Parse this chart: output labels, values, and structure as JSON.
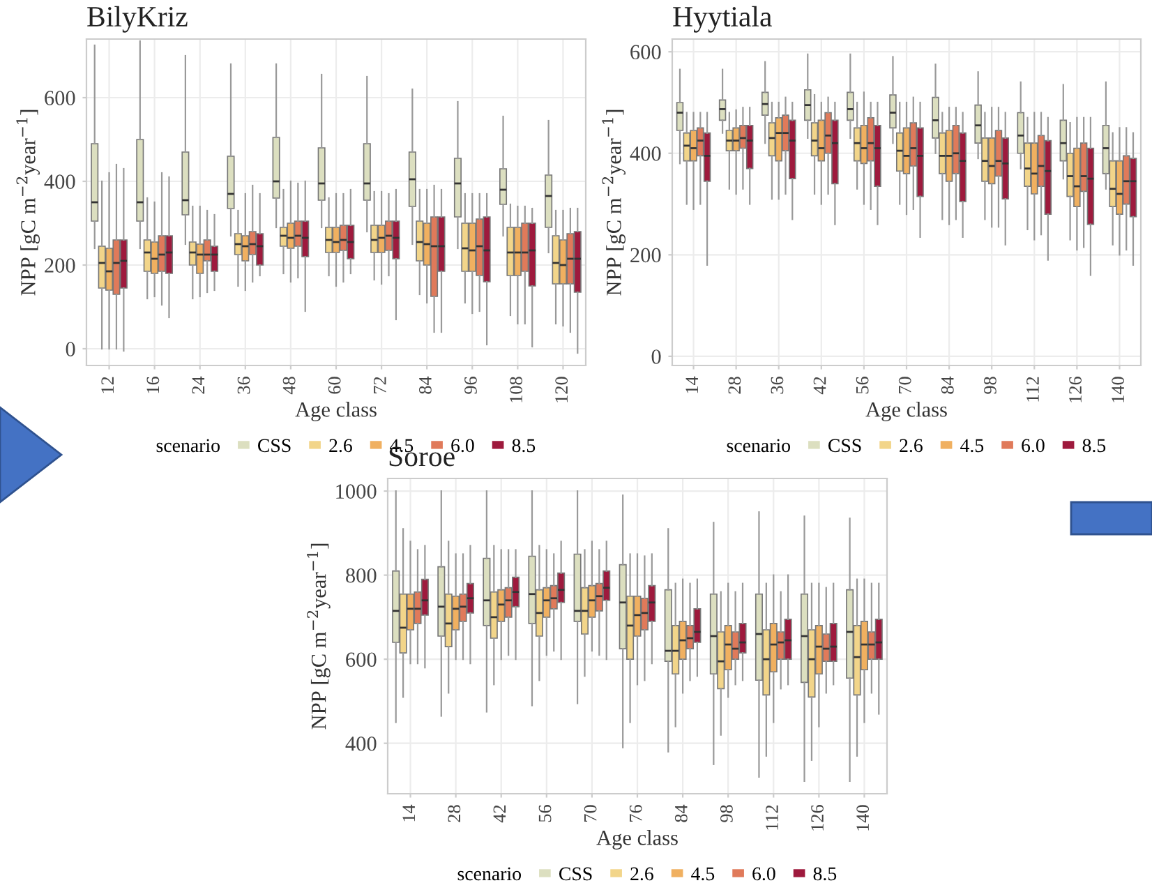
{
  "chart_data": [
    {
      "type": "box",
      "title": "BilyKriz",
      "xlabel": "Age class",
      "ylabel": "NPP [gC m$^{−2}$year$^{−1}$]",
      "legend_title": "scenario",
      "legend": "bottom",
      "grid": true,
      "ylim": [
        -40,
        740
      ],
      "yticks": [
        0,
        200,
        400,
        600
      ],
      "categories": [
        "12",
        "16",
        "24",
        "36",
        "48",
        "60",
        "72",
        "84",
        "96",
        "108",
        "120"
      ],
      "series": [
        {
          "name": "CSS",
          "color": "#dcdfc0",
          "boxes": [
            {
              "low": 240,
              "q1": 305,
              "median": 350,
              "q3": 490,
              "high": 725
            },
            {
              "low": 240,
              "q1": 305,
              "median": 350,
              "q3": 500,
              "high": 735
            },
            {
              "low": 250,
              "q1": 320,
              "median": 355,
              "q3": 470,
              "high": 700
            },
            {
              "low": 270,
              "q1": 335,
              "median": 370,
              "q3": 460,
              "high": 680
            },
            {
              "low": 290,
              "q1": 360,
              "median": 400,
              "q3": 505,
              "high": 680
            },
            {
              "low": 290,
              "q1": 355,
              "median": 395,
              "q3": 480,
              "high": 655
            },
            {
              "low": 280,
              "q1": 355,
              "median": 395,
              "q3": 490,
              "high": 650
            },
            {
              "low": 250,
              "q1": 340,
              "median": 405,
              "q3": 470,
              "high": 620
            },
            {
              "low": 240,
              "q1": 315,
              "median": 395,
              "q3": 455,
              "high": 590
            },
            {
              "low": 270,
              "q1": 345,
              "median": 380,
              "q3": 430,
              "high": 555
            },
            {
              "low": 230,
              "q1": 290,
              "median": 365,
              "q3": 415,
              "high": 545
            }
          ]
        },
        {
          "name": "2.6",
          "color": "#f2d58a",
          "boxes": [
            {
              "low": 0,
              "q1": 145,
              "median": 205,
              "q3": 245,
              "high": 400
            },
            {
              "low": 120,
              "q1": 185,
              "median": 230,
              "q3": 260,
              "high": 360
            },
            {
              "low": 120,
              "q1": 200,
              "median": 230,
              "q3": 255,
              "high": 340
            },
            {
              "low": 150,
              "q1": 225,
              "median": 250,
              "q3": 275,
              "high": 330
            },
            {
              "low": 180,
              "q1": 245,
              "median": 270,
              "q3": 290,
              "high": 380
            },
            {
              "low": 175,
              "q1": 230,
              "median": 260,
              "q3": 290,
              "high": 360
            },
            {
              "low": 165,
              "q1": 230,
              "median": 260,
              "q3": 295,
              "high": 375
            },
            {
              "low": 130,
              "q1": 210,
              "median": 255,
              "q3": 305,
              "high": 380
            },
            {
              "low": 110,
              "q1": 185,
              "median": 240,
              "q3": 300,
              "high": 370
            },
            {
              "low": 80,
              "q1": 175,
              "median": 230,
              "q3": 290,
              "high": 345
            },
            {
              "low": 60,
              "q1": 155,
              "median": 205,
              "q3": 270,
              "high": 330
            }
          ]
        },
        {
          "name": "4.5",
          "color": "#f0b060",
          "boxes": [
            {
              "low": 0,
              "q1": 140,
              "median": 185,
              "q3": 240,
              "high": 420
            },
            {
              "low": 125,
              "q1": 180,
              "median": 215,
              "q3": 255,
              "high": 350
            },
            {
              "low": 125,
              "q1": 180,
              "median": 225,
              "q3": 250,
              "high": 340
            },
            {
              "low": 140,
              "q1": 210,
              "median": 245,
              "q3": 270,
              "high": 370
            },
            {
              "low": 160,
              "q1": 240,
              "median": 265,
              "q3": 300,
              "high": 400
            },
            {
              "low": 150,
              "q1": 230,
              "median": 255,
              "q3": 290,
              "high": 370
            },
            {
              "low": 155,
              "q1": 230,
              "median": 265,
              "q3": 295,
              "high": 375
            },
            {
              "low": 110,
              "q1": 200,
              "median": 250,
              "q3": 300,
              "high": 380
            },
            {
              "low": 85,
              "q1": 185,
              "median": 235,
              "q3": 300,
              "high": 370
            },
            {
              "low": 60,
              "q1": 175,
              "median": 230,
              "q3": 290,
              "high": 340
            },
            {
              "low": 55,
              "q1": 155,
              "median": 200,
              "q3": 260,
              "high": 330
            }
          ]
        },
        {
          "name": "6.0",
          "color": "#e07a5a",
          "boxes": [
            {
              "low": 0,
              "q1": 130,
              "median": 205,
              "q3": 260,
              "high": 440
            },
            {
              "low": 105,
              "q1": 185,
              "median": 225,
              "q3": 270,
              "high": 420
            },
            {
              "low": 135,
              "q1": 210,
              "median": 225,
              "q3": 260,
              "high": 330
            },
            {
              "low": 160,
              "q1": 225,
              "median": 250,
              "q3": 280,
              "high": 390
            },
            {
              "low": 170,
              "q1": 245,
              "median": 270,
              "q3": 305,
              "high": 395
            },
            {
              "low": 160,
              "q1": 235,
              "median": 260,
              "q3": 295,
              "high": 370
            },
            {
              "low": 175,
              "q1": 235,
              "median": 270,
              "q3": 305,
              "high": 370
            },
            {
              "low": 40,
              "q1": 125,
              "median": 245,
              "q3": 315,
              "high": 390
            },
            {
              "low": 90,
              "q1": 175,
              "median": 245,
              "q3": 310,
              "high": 370
            },
            {
              "low": 60,
              "q1": 185,
              "median": 230,
              "q3": 300,
              "high": 340
            },
            {
              "low": 40,
              "q1": 155,
              "median": 215,
              "q3": 275,
              "high": 335
            }
          ]
        },
        {
          "name": "8.5",
          "color": "#9e1a3d",
          "boxes": [
            {
              "low": -5,
              "q1": 145,
              "median": 210,
              "q3": 260,
              "high": 430
            },
            {
              "low": 75,
              "q1": 180,
              "median": 230,
              "q3": 270,
              "high": 410
            },
            {
              "low": 140,
              "q1": 185,
              "median": 225,
              "q3": 245,
              "high": 320
            },
            {
              "low": 175,
              "q1": 200,
              "median": 245,
              "q3": 275,
              "high": 370
            },
            {
              "low": 90,
              "q1": 220,
              "median": 265,
              "q3": 305,
              "high": 400
            },
            {
              "low": 180,
              "q1": 215,
              "median": 255,
              "q3": 295,
              "high": 380
            },
            {
              "low": 70,
              "q1": 215,
              "median": 265,
              "q3": 305,
              "high": 380
            },
            {
              "low": 40,
              "q1": 185,
              "median": 245,
              "q3": 315,
              "high": 380
            },
            {
              "low": 10,
              "q1": 160,
              "median": 235,
              "q3": 315,
              "high": 370
            },
            {
              "low": 5,
              "q1": 150,
              "median": 235,
              "q3": 300,
              "high": 335
            },
            {
              "low": -10,
              "q1": 135,
              "median": 215,
              "q3": 280,
              "high": 335
            }
          ]
        }
      ]
    },
    {
      "type": "box",
      "title": "Hyytiala",
      "xlabel": "Age class",
      "ylabel": "NPP [gC m$^{−2}$year$^{−1}$]",
      "legend_title": "scenario",
      "legend": "bottom",
      "grid": true,
      "ylim": [
        -18,
        625
      ],
      "yticks": [
        0,
        200,
        400,
        600
      ],
      "categories": [
        "14",
        "28",
        "36",
        "42",
        "56",
        "70",
        "84",
        "98",
        "112",
        "126",
        "140"
      ],
      "series": [
        {
          "name": "CSS",
          "color": "#dcdfc0",
          "boxes": [
            {
              "low": 380,
              "q1": 445,
              "median": 480,
              "q3": 500,
              "high": 565
            },
            {
              "low": 440,
              "q1": 465,
              "median": 487,
              "q3": 505,
              "high": 565
            },
            {
              "low": 420,
              "q1": 475,
              "median": 497,
              "q3": 520,
              "high": 580
            },
            {
              "low": 430,
              "q1": 465,
              "median": 495,
              "q3": 525,
              "high": 595
            },
            {
              "low": 430,
              "q1": 465,
              "median": 487,
              "q3": 520,
              "high": 595
            },
            {
              "low": 420,
              "q1": 450,
              "median": 480,
              "q3": 515,
              "high": 590
            },
            {
              "low": 400,
              "q1": 430,
              "median": 465,
              "q3": 510,
              "high": 575
            },
            {
              "low": 390,
              "q1": 420,
              "median": 455,
              "q3": 495,
              "high": 560
            },
            {
              "low": 370,
              "q1": 400,
              "median": 435,
              "q3": 480,
              "high": 540
            },
            {
              "low": 350,
              "q1": 385,
              "median": 420,
              "q3": 465,
              "high": 535
            },
            {
              "low": 330,
              "q1": 360,
              "median": 410,
              "q3": 455,
              "high": 540
            }
          ]
        },
        {
          "name": "2.6",
          "color": "#f2d58a",
          "boxes": [
            {
              "low": 300,
              "q1": 385,
              "median": 415,
              "q3": 440,
              "high": 480
            },
            {
              "low": 330,
              "q1": 405,
              "median": 425,
              "q3": 445,
              "high": 480
            },
            {
              "low": 310,
              "q1": 395,
              "median": 430,
              "q3": 460,
              "high": 500
            },
            {
              "low": 320,
              "q1": 395,
              "median": 425,
              "q3": 460,
              "high": 515
            },
            {
              "low": 330,
              "q1": 385,
              "median": 420,
              "q3": 450,
              "high": 500
            },
            {
              "low": 300,
              "q1": 365,
              "median": 405,
              "q3": 440,
              "high": 500
            },
            {
              "low": 270,
              "q1": 360,
              "median": 395,
              "q3": 440,
              "high": 480
            },
            {
              "low": 270,
              "q1": 345,
              "median": 385,
              "q3": 430,
              "high": 480
            },
            {
              "low": 250,
              "q1": 335,
              "median": 370,
              "q3": 420,
              "high": 470
            },
            {
              "low": 230,
              "q1": 315,
              "median": 355,
              "q3": 400,
              "high": 460
            },
            {
              "low": 220,
              "q1": 295,
              "median": 330,
              "q3": 385,
              "high": 440
            }
          ]
        },
        {
          "name": "4.5",
          "color": "#f0b060",
          "boxes": [
            {
              "low": 290,
              "q1": 385,
              "median": 410,
              "q3": 445,
              "high": 480
            },
            {
              "low": 320,
              "q1": 405,
              "median": 425,
              "q3": 450,
              "high": 485
            },
            {
              "low": 310,
              "q1": 385,
              "median": 440,
              "q3": 470,
              "high": 500
            },
            {
              "low": 300,
              "q1": 385,
              "median": 410,
              "q3": 465,
              "high": 500
            },
            {
              "low": 300,
              "q1": 380,
              "median": 410,
              "q3": 455,
              "high": 520
            },
            {
              "low": 280,
              "q1": 360,
              "median": 395,
              "q3": 450,
              "high": 500
            },
            {
              "low": 260,
              "q1": 345,
              "median": 395,
              "q3": 445,
              "high": 490
            },
            {
              "low": 255,
              "q1": 340,
              "median": 375,
              "q3": 430,
              "high": 490
            },
            {
              "low": 230,
              "q1": 320,
              "median": 360,
              "q3": 420,
              "high": 480
            },
            {
              "low": 210,
              "q1": 295,
              "median": 335,
              "q3": 410,
              "high": 470
            },
            {
              "low": 200,
              "q1": 280,
              "median": 320,
              "q3": 385,
              "high": 450
            }
          ]
        },
        {
          "name": "6.0",
          "color": "#e07a5a",
          "boxes": [
            {
              "low": 300,
              "q1": 395,
              "median": 425,
              "q3": 450,
              "high": 480
            },
            {
              "low": 330,
              "q1": 410,
              "median": 430,
              "q3": 455,
              "high": 490
            },
            {
              "low": 320,
              "q1": 405,
              "median": 440,
              "q3": 475,
              "high": 510
            },
            {
              "low": 320,
              "q1": 400,
              "median": 435,
              "q3": 480,
              "high": 510
            },
            {
              "low": 290,
              "q1": 385,
              "median": 420,
              "q3": 470,
              "high": 500
            },
            {
              "low": 290,
              "q1": 375,
              "median": 410,
              "q3": 460,
              "high": 510
            },
            {
              "low": 270,
              "q1": 360,
              "median": 400,
              "q3": 455,
              "high": 490
            },
            {
              "low": 255,
              "q1": 355,
              "median": 385,
              "q3": 445,
              "high": 490
            },
            {
              "low": 240,
              "q1": 335,
              "median": 375,
              "q3": 435,
              "high": 480
            },
            {
              "low": 215,
              "q1": 325,
              "median": 355,
              "q3": 420,
              "high": 470
            },
            {
              "low": 210,
              "q1": 300,
              "median": 345,
              "q3": 395,
              "high": 450
            }
          ]
        },
        {
          "name": "8.5",
          "color": "#9e1a3d",
          "boxes": [
            {
              "low": 180,
              "q1": 345,
              "median": 395,
              "q3": 440,
              "high": 480
            },
            {
              "low": 300,
              "q1": 370,
              "median": 425,
              "q3": 455,
              "high": 490
            },
            {
              "low": 270,
              "q1": 350,
              "median": 425,
              "q3": 465,
              "high": 500
            },
            {
              "low": 260,
              "q1": 340,
              "median": 420,
              "q3": 465,
              "high": 500
            },
            {
              "low": 260,
              "q1": 335,
              "median": 410,
              "q3": 455,
              "high": 500
            },
            {
              "low": 235,
              "q1": 315,
              "median": 395,
              "q3": 450,
              "high": 500
            },
            {
              "low": 235,
              "q1": 305,
              "median": 385,
              "q3": 440,
              "high": 480
            },
            {
              "low": 220,
              "q1": 310,
              "median": 380,
              "q3": 430,
              "high": 480
            },
            {
              "low": 190,
              "q1": 280,
              "median": 365,
              "q3": 425,
              "high": 470
            },
            {
              "low": 160,
              "q1": 260,
              "median": 350,
              "q3": 410,
              "high": 470
            },
            {
              "low": 180,
              "q1": 275,
              "median": 345,
              "q3": 390,
              "high": 440
            }
          ]
        }
      ]
    },
    {
      "type": "box",
      "title": "Soroe",
      "xlabel": "Age class",
      "ylabel": "NPP [gC m$^{−2}$year$^{−1}$]",
      "legend_title": "scenario",
      "legend": "bottom",
      "grid": true,
      "ylim": [
        280,
        1030
      ],
      "yticks": [
        400,
        600,
        800,
        1000
      ],
      "categories": [
        "14",
        "28",
        "42",
        "56",
        "70",
        "76",
        "84",
        "98",
        "112",
        "126",
        "140"
      ],
      "series": [
        {
          "name": "CSS",
          "color": "#dcdfc0",
          "boxes": [
            {
              "low": 450,
              "q1": 640,
              "median": 715,
              "q3": 810,
              "high": 1000
            },
            {
              "low": 465,
              "q1": 655,
              "median": 725,
              "q3": 820,
              "high": 1000
            },
            {
              "low": 475,
              "q1": 680,
              "median": 740,
              "q3": 840,
              "high": 1000
            },
            {
              "low": 490,
              "q1": 685,
              "median": 755,
              "q3": 845,
              "high": 1000
            },
            {
              "low": 495,
              "q1": 690,
              "median": 715,
              "q3": 850,
              "high": 1000
            },
            {
              "low": 390,
              "q1": 625,
              "median": 735,
              "q3": 825,
              "high": 990
            },
            {
              "low": 380,
              "q1": 595,
              "median": 620,
              "q3": 765,
              "high": 910
            },
            {
              "low": 350,
              "q1": 565,
              "median": 655,
              "q3": 755,
              "high": 925
            },
            {
              "low": 320,
              "q1": 550,
              "median": 660,
              "q3": 755,
              "high": 950
            },
            {
              "low": 310,
              "q1": 545,
              "median": 655,
              "q3": 755,
              "high": 940
            },
            {
              "low": 310,
              "q1": 555,
              "median": 665,
              "q3": 765,
              "high": 935
            }
          ]
        },
        {
          "name": "2.6",
          "color": "#f2d58a",
          "boxes": [
            {
              "low": 510,
              "q1": 615,
              "median": 675,
              "q3": 755,
              "high": 910
            },
            {
              "low": 520,
              "q1": 630,
              "median": 685,
              "q3": 755,
              "high": 880
            },
            {
              "low": 540,
              "q1": 650,
              "median": 700,
              "q3": 760,
              "high": 870
            },
            {
              "low": 550,
              "q1": 655,
              "median": 710,
              "q3": 765,
              "high": 870
            },
            {
              "low": 560,
              "q1": 660,
              "median": 715,
              "q3": 770,
              "high": 860
            },
            {
              "low": 450,
              "q1": 600,
              "median": 680,
              "q3": 750,
              "high": 850
            },
            {
              "low": 440,
              "q1": 565,
              "median": 620,
              "q3": 680,
              "high": 780
            },
            {
              "low": 420,
              "q1": 530,
              "median": 595,
              "q3": 665,
              "high": 760
            },
            {
              "low": 370,
              "q1": 515,
              "median": 600,
              "q3": 670,
              "high": 780
            },
            {
              "low": 360,
              "q1": 510,
              "median": 600,
              "q3": 670,
              "high": 780
            },
            {
              "low": 370,
              "q1": 515,
              "median": 605,
              "q3": 680,
              "high": 790
            }
          ]
        },
        {
          "name": "4.5",
          "color": "#f0b060",
          "boxes": [
            {
              "low": 590,
              "q1": 670,
              "median": 720,
              "q3": 755,
              "high": 880
            },
            {
              "low": 600,
              "q1": 670,
              "median": 720,
              "q3": 750,
              "high": 850
            },
            {
              "low": 600,
              "q1": 690,
              "median": 730,
              "q3": 765,
              "high": 860
            },
            {
              "low": 610,
              "q1": 700,
              "median": 740,
              "q3": 770,
              "high": 860
            },
            {
              "low": 620,
              "q1": 700,
              "median": 740,
              "q3": 775,
              "high": 880
            },
            {
              "low": 540,
              "q1": 655,
              "median": 705,
              "q3": 750,
              "high": 850
            },
            {
              "low": 520,
              "q1": 600,
              "median": 645,
              "q3": 690,
              "high": 790
            },
            {
              "low": 510,
              "q1": 575,
              "median": 635,
              "q3": 680,
              "high": 780
            },
            {
              "low": 450,
              "q1": 570,
              "median": 635,
              "q3": 685,
              "high": 800
            },
            {
              "low": 440,
              "q1": 565,
              "median": 630,
              "q3": 680,
              "high": 780
            },
            {
              "low": 450,
              "q1": 575,
              "median": 635,
              "q3": 690,
              "high": 790
            }
          ]
        },
        {
          "name": "6.0",
          "color": "#e07a5a",
          "boxes": [
            {
              "low": 590,
              "q1": 685,
              "median": 720,
              "q3": 760,
              "high": 860
            },
            {
              "low": 600,
              "q1": 690,
              "median": 725,
              "q3": 755,
              "high": 850
            },
            {
              "low": 610,
              "q1": 700,
              "median": 740,
              "q3": 770,
              "high": 860
            },
            {
              "low": 620,
              "q1": 720,
              "median": 745,
              "q3": 775,
              "high": 850
            },
            {
              "low": 610,
              "q1": 715,
              "median": 750,
              "q3": 780,
              "high": 860
            },
            {
              "low": 550,
              "q1": 670,
              "median": 710,
              "q3": 745,
              "high": 845
            },
            {
              "low": 550,
              "q1": 625,
              "median": 650,
              "q3": 680,
              "high": 780
            },
            {
              "low": 540,
              "q1": 600,
              "median": 625,
              "q3": 665,
              "high": 760
            },
            {
              "low": 530,
              "q1": 600,
              "median": 640,
              "q3": 665,
              "high": 760
            },
            {
              "low": 520,
              "q1": 595,
              "median": 625,
              "q3": 660,
              "high": 770
            },
            {
              "low": 520,
              "q1": 600,
              "median": 635,
              "q3": 665,
              "high": 780
            }
          ]
        },
        {
          "name": "8.5",
          "color": "#9e1a3d",
          "boxes": [
            {
              "low": 580,
              "q1": 705,
              "median": 740,
              "q3": 790,
              "high": 870
            },
            {
              "low": 590,
              "q1": 710,
              "median": 745,
              "q3": 780,
              "high": 870
            },
            {
              "low": 600,
              "q1": 725,
              "median": 760,
              "q3": 795,
              "high": 860
            },
            {
              "low": 600,
              "q1": 735,
              "median": 765,
              "q3": 805,
              "high": 880
            },
            {
              "low": 600,
              "q1": 740,
              "median": 770,
              "q3": 810,
              "high": 880
            },
            {
              "low": 590,
              "q1": 690,
              "median": 735,
              "q3": 775,
              "high": 850
            },
            {
              "low": 560,
              "q1": 640,
              "median": 665,
              "q3": 720,
              "high": 790
            },
            {
              "low": 550,
              "q1": 615,
              "median": 640,
              "q3": 685,
              "high": 780
            },
            {
              "low": 540,
              "q1": 600,
              "median": 645,
              "q3": 695,
              "high": 800
            },
            {
              "low": 540,
              "q1": 595,
              "median": 630,
              "q3": 685,
              "high": 780
            },
            {
              "low": 470,
              "q1": 600,
              "median": 640,
              "q3": 695,
              "high": 780
            }
          ]
        }
      ]
    }
  ]
}
